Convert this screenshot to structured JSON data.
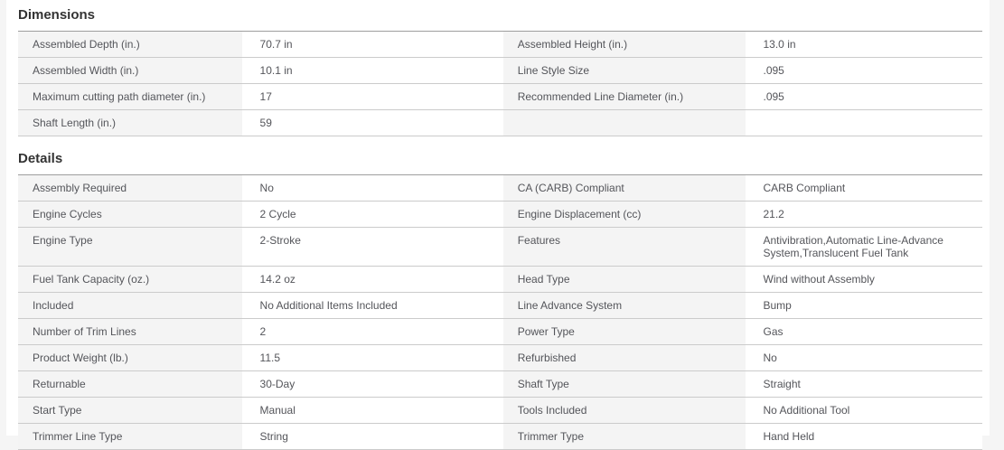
{
  "sections": [
    {
      "title": "Dimensions",
      "rows": [
        [
          {
            "label": "Assembled Depth (in.)",
            "value": "70.7 in"
          },
          {
            "label": "Assembled Height (in.)",
            "value": "13.0 in"
          }
        ],
        [
          {
            "label": "Assembled Width (in.)",
            "value": "10.1 in"
          },
          {
            "label": "Line Style Size",
            "value": ".095"
          }
        ],
        [
          {
            "label": "Maximum cutting path diameter (in.)",
            "value": "17"
          },
          {
            "label": "Recommended Line Diameter (in.)",
            "value": ".095"
          }
        ],
        [
          {
            "label": "Shaft Length (in.)",
            "value": "59"
          },
          {
            "label": "",
            "value": ""
          }
        ]
      ]
    },
    {
      "title": "Details",
      "rows": [
        [
          {
            "label": "Assembly Required",
            "value": "No"
          },
          {
            "label": "CA (CARB) Compliant",
            "value": "CARB Compliant"
          }
        ],
        [
          {
            "label": "Engine Cycles",
            "value": "2 Cycle"
          },
          {
            "label": "Engine Displacement (cc)",
            "value": "21.2"
          }
        ],
        [
          {
            "label": "Engine Type",
            "value": "2-Stroke"
          },
          {
            "label": "Features",
            "value": "Antivibration,Automatic Line-Advance System,Translucent Fuel Tank"
          }
        ],
        [
          {
            "label": "Fuel Tank Capacity (oz.)",
            "value": "14.2 oz"
          },
          {
            "label": "Head Type",
            "value": "Wind without Assembly"
          }
        ],
        [
          {
            "label": "Included",
            "value": "No Additional Items Included"
          },
          {
            "label": "Line Advance System",
            "value": "Bump"
          }
        ],
        [
          {
            "label": "Number of Trim Lines",
            "value": "2"
          },
          {
            "label": "Power Type",
            "value": "Gas"
          }
        ],
        [
          {
            "label": "Product Weight (lb.)",
            "value": "11.5"
          },
          {
            "label": "Refurbished",
            "value": "No"
          }
        ],
        [
          {
            "label": "Returnable",
            "value": "30-Day"
          },
          {
            "label": "Shaft Type",
            "value": "Straight"
          }
        ],
        [
          {
            "label": "Start Type",
            "value": "Manual"
          },
          {
            "label": "Tools Included",
            "value": "No Additional Tool"
          }
        ],
        [
          {
            "label": "Trimmer Line Type",
            "value": "String"
          },
          {
            "label": "Trimmer Type",
            "value": "Hand Held"
          }
        ]
      ]
    }
  ]
}
